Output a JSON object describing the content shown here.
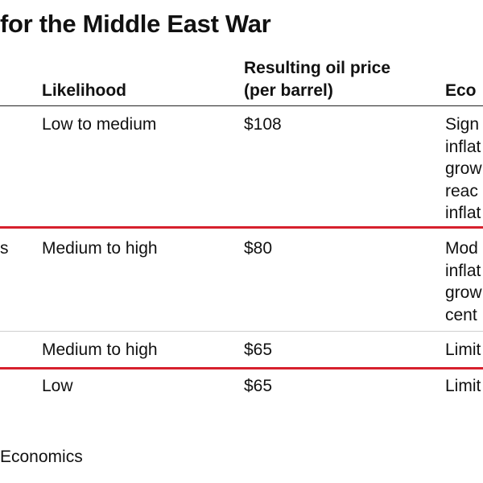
{
  "title": "for the Middle East War",
  "header": {
    "likelihood": "Likelihood",
    "oil_price": [
      "Resulting oil price",
      "(per barrel)"
    ],
    "economic": "Eco"
  },
  "rows": [
    {
      "scenario": "",
      "likelihood": "Low to medium",
      "oil_price": "$108",
      "economic": [
        "Sign",
        "inflat",
        "grow",
        "reac",
        "inflat"
      ],
      "separator_color": "#d7202d"
    },
    {
      "scenario": "s",
      "likelihood": "Medium to high",
      "oil_price": "$80",
      "economic": [
        "Mod",
        "inflat",
        "grow",
        "cent"
      ],
      "separator_color": "#cfcfcf"
    },
    {
      "scenario": "",
      "likelihood": "Medium to high",
      "oil_price": "$65",
      "economic": [
        "Limit"
      ],
      "separator_color": "#d7202d"
    },
    {
      "scenario": "",
      "likelihood": "Low",
      "oil_price": "$65",
      "economic": [
        "Limit"
      ],
      "separator_color": ""
    }
  ],
  "source": "Economics"
}
